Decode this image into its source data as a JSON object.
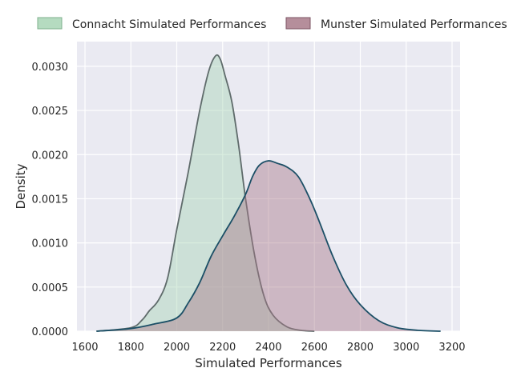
{
  "chart_data": {
    "type": "area",
    "title": "",
    "xlabel": "Simulated Performances",
    "ylabel": "Density",
    "xlim": [
      1565,
      3235
    ],
    "ylim": [
      0,
      0.00328
    ],
    "xticks": [
      "1600",
      "1800",
      "2000",
      "2200",
      "2400",
      "2600",
      "2800",
      "3000",
      "3200"
    ],
    "yticks": [
      "0.0000",
      "0.0005",
      "0.0010",
      "0.0015",
      "0.0020",
      "0.0025",
      "0.0030"
    ],
    "grid": true,
    "legend_position": "top, above plot",
    "series": [
      {
        "name": "Connacht Simulated Performances",
        "fill": "#a8d5b5",
        "line": "#5f6b6b",
        "x": [
          1650,
          1800,
          1850,
          1880,
          1920,
          1960,
          2000,
          2050,
          2100,
          2140,
          2170,
          2190,
          2210,
          2240,
          2270,
          2300,
          2340,
          2380,
          2420,
          2480,
          2540,
          2600
        ],
        "y": [
          0.0,
          4e-05,
          0.00013,
          0.00023,
          0.00035,
          0.0006,
          0.00115,
          0.0018,
          0.0025,
          0.00295,
          0.00312,
          0.00308,
          0.0029,
          0.0026,
          0.0021,
          0.0015,
          0.00085,
          0.0004,
          0.00018,
          5e-05,
          1e-05,
          0.0
        ]
      },
      {
        "name": "Munster Simulated Performances",
        "fill": "#a87a8a",
        "line": "#1b4f66",
        "x": [
          1650,
          1800,
          1900,
          2000,
          2050,
          2100,
          2150,
          2200,
          2250,
          2300,
          2330,
          2360,
          2400,
          2440,
          2480,
          2530,
          2580,
          2620,
          2680,
          2740,
          2800,
          2880,
          2960,
          3050,
          3150
        ],
        "y": [
          0.0,
          3e-05,
          8e-05,
          0.00015,
          0.00032,
          0.00055,
          0.00085,
          0.00108,
          0.0013,
          0.00155,
          0.00175,
          0.00188,
          0.00193,
          0.0019,
          0.00186,
          0.00175,
          0.0015,
          0.00125,
          0.00085,
          0.00052,
          0.0003,
          0.00012,
          4e-05,
          1e-05,
          0.0
        ]
      }
    ]
  }
}
